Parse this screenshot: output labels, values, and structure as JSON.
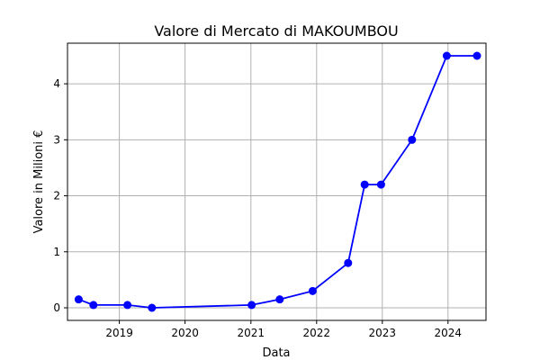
{
  "chart_data": {
    "type": "line",
    "title": "Valore di Mercato di MAKOUMBOU",
    "xlabel": "Data",
    "ylabel": "Valore in Milioni €",
    "x": [
      "2018-05-20",
      "2018-08-10",
      "2019-02-15",
      "2019-07-01",
      "2021-01-05",
      "2021-06-10",
      "2021-12-10",
      "2022-06-25",
      "2022-09-25",
      "2022-12-25",
      "2023-06-15",
      "2023-12-25",
      "2024-06-10"
    ],
    "series": [
      {
        "values": [
          0.15,
          0.05,
          0.05,
          0.0,
          0.05,
          0.15,
          0.3,
          0.8,
          2.2,
          2.2,
          3.0,
          4.5,
          4.5
        ],
        "color": "#0000ff"
      }
    ],
    "xticks": [
      "2019",
      "2020",
      "2021",
      "2022",
      "2023",
      "2024"
    ],
    "yticks": [
      "0",
      "1",
      "2",
      "3",
      "4"
    ],
    "xlim": [
      "2018-03-19",
      "2024-07-30"
    ],
    "ylim": [
      -0.225,
      4.725
    ],
    "grid": true,
    "marker": "circle"
  }
}
